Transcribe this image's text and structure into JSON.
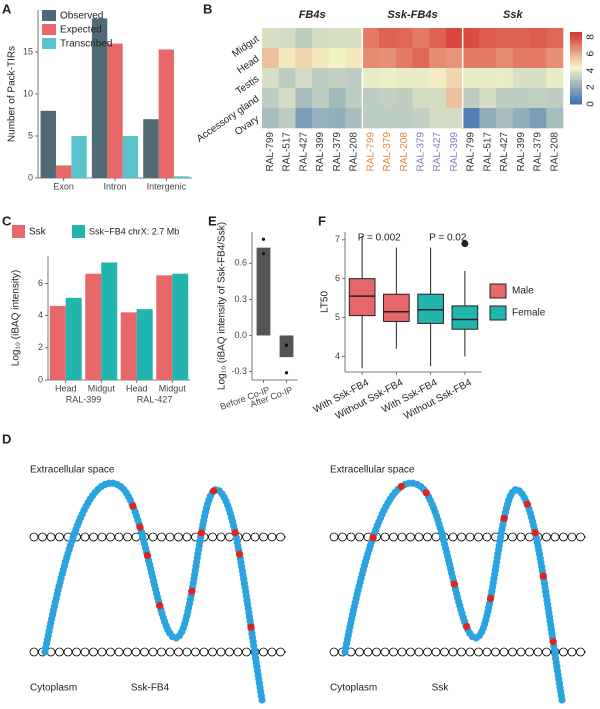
{
  "chart_data": [
    {
      "type": "bar",
      "panel": "A",
      "y_label": "Number of Pack-TIRs",
      "categories": [
        "Exon",
        "Intron",
        "Intergenic"
      ],
      "series": [
        {
          "name": "Observed",
          "color": "#4e6a74",
          "values": [
            8,
            19,
            7
          ]
        },
        {
          "name": "Expected",
          "color": "#e8676a",
          "values": [
            1.5,
            16,
            15.3
          ]
        },
        {
          "name": "Transcribed",
          "color": "#5bc3cb",
          "values": [
            5,
            5,
            0.2
          ]
        }
      ],
      "ylim": [
        0,
        20
      ],
      "yticks": [
        0,
        5,
        10,
        15
      ],
      "legend": "top-left"
    },
    {
      "type": "heatmap",
      "panel": "B",
      "groups": [
        "FB4s",
        "Ssk-FB4s",
        "Ssk"
      ],
      "rows": [
        "Midgut",
        "Head",
        "Testis",
        "Accessory gland",
        "Ovary"
      ],
      "columns": [
        "RAL-799",
        "RAL-517",
        "RAL-427",
        "RAL-399",
        "RAL-379",
        "RAL-208",
        "RAL-799",
        "RAL-379",
        "RAL-208",
        "RAL-379",
        "RAL-427",
        "RAL-399",
        "RAL-799",
        "RAL-517",
        "RAL-427",
        "RAL-399",
        "RAL-379",
        "RAL-208"
      ],
      "column_colors": [
        "#333333",
        "#333333",
        "#333333",
        "#333333",
        "#333333",
        "#333333",
        "#e0873a",
        "#e0873a",
        "#e0873a",
        "#7c7fc0",
        "#7c7fc0",
        "#7c7fc0",
        "#333333",
        "#333333",
        "#333333",
        "#333333",
        "#333333",
        "#333333"
      ],
      "values": [
        [
          3.6,
          3.5,
          3.0,
          3.5,
          3.6,
          3.6,
          7.0,
          7.5,
          7.4,
          7.0,
          7.5,
          8.1,
          8.0,
          7.6,
          7.5,
          7.5,
          7.6,
          7.4
        ],
        [
          5.5,
          4.6,
          5.0,
          4.6,
          4.2,
          4.6,
          6.6,
          6.5,
          7.0,
          7.4,
          6.6,
          6.4,
          7.0,
          7.0,
          6.6,
          7.0,
          7.0,
          6.5
        ],
        [
          3.6,
          3.0,
          3.5,
          3.0,
          3.1,
          3.0,
          4.0,
          4.1,
          4.0,
          4.0,
          4.5,
          5.0,
          4.0,
          4.0,
          4.0,
          3.6,
          3.6,
          4.0
        ],
        [
          3.0,
          3.5,
          2.5,
          3.0,
          2.4,
          3.0,
          3.0,
          3.1,
          3.0,
          3.5,
          3.5,
          5.5,
          3.0,
          3.5,
          3.0,
          3.0,
          3.1,
          3.0
        ],
        [
          2.5,
          3.0,
          1.5,
          2.1,
          2.0,
          2.5,
          3.0,
          3.0,
          3.0,
          3.1,
          3.5,
          3.5,
          0.5,
          2.0,
          2.5,
          2.0,
          1.5,
          2.5
        ]
      ],
      "colorscale": [
        "#3b6fb0",
        "#f6f6c8",
        "#d6302a"
      ],
      "clim": [
        0,
        8.6
      ],
      "cticks": [
        0,
        2,
        4,
        6,
        8
      ]
    },
    {
      "type": "bar",
      "panel": "C",
      "y_label": "Log₁₀ (iBAQ intensity)",
      "categories": [
        "Head",
        "Midgut",
        "Head",
        "Midgut"
      ],
      "groups": [
        "RAL-399",
        "RAL-427"
      ],
      "series": [
        {
          "name": "Ssk",
          "color": "#e8676a",
          "values": [
            4.6,
            6.6,
            4.2,
            6.5
          ]
        },
        {
          "name": "Ssk−FB4 chrX: 2.7 Mb",
          "color": "#22b5ad",
          "values": [
            5.1,
            7.3,
            4.4,
            6.6
          ]
        }
      ],
      "ylim": [
        0,
        7.7
      ],
      "yticks": [
        0,
        2,
        4,
        6
      ],
      "legend": "top"
    },
    {
      "type": "bar",
      "panel": "E",
      "y_label": "Log₁₀ (iBAQ intensity of Ssk-FB4/Ssk)",
      "categories": [
        "Before Co-IP",
        "After Co-IP"
      ],
      "values": [
        0.73,
        -0.18
      ],
      "points": [
        [
          0.8,
          0.68
        ],
        [
          -0.08,
          -0.31
        ]
      ],
      "color": "#555555",
      "ylim": [
        -0.37,
        0.86
      ],
      "yticks": [
        -0.3,
        {
          "value": 0,
          "label": "0.0"
        },
        0.3,
        0.6
      ]
    },
    {
      "type": "box",
      "panel": "F",
      "y_label": "LT50",
      "categories": [
        "With Ssk-FB4",
        "Without Ssk-FB4",
        "With Ssk-FB4",
        "Without Ssk-FB4"
      ],
      "series": [
        {
          "name": "Male",
          "color": "#e8676a",
          "boxes": [
            [
              3.7,
              5.05,
              5.55,
              6.0,
              7.1
            ],
            [
              4.2,
              4.9,
              5.15,
              5.6,
              6.8
            ]
          ],
          "outliers": [
            [],
            []
          ]
        },
        {
          "name": "Female",
          "color": "#22b5ad",
          "boxes": [
            [
              3.75,
              4.85,
              5.2,
              5.6,
              6.8
            ],
            [
              4.0,
              4.7,
              4.95,
              5.3,
              6.2
            ]
          ],
          "outliers": [
            [],
            [
              6.9
            ]
          ]
        }
      ],
      "annotations": [
        "P = 0.002",
        "P = 0.02"
      ],
      "ylim": [
        3.6,
        7.2
      ],
      "yticks": [
        4,
        5,
        6,
        7
      ],
      "legend": "right"
    }
  ],
  "diagram": {
    "panel": "D",
    "items": [
      {
        "top": "Extracellular space",
        "bottom": "Cytoplasm",
        "name": "Ssk-FB4"
      },
      {
        "top": "Extracellular space",
        "bottom": "Cytoplasm",
        "name": "Ssk"
      }
    ]
  }
}
